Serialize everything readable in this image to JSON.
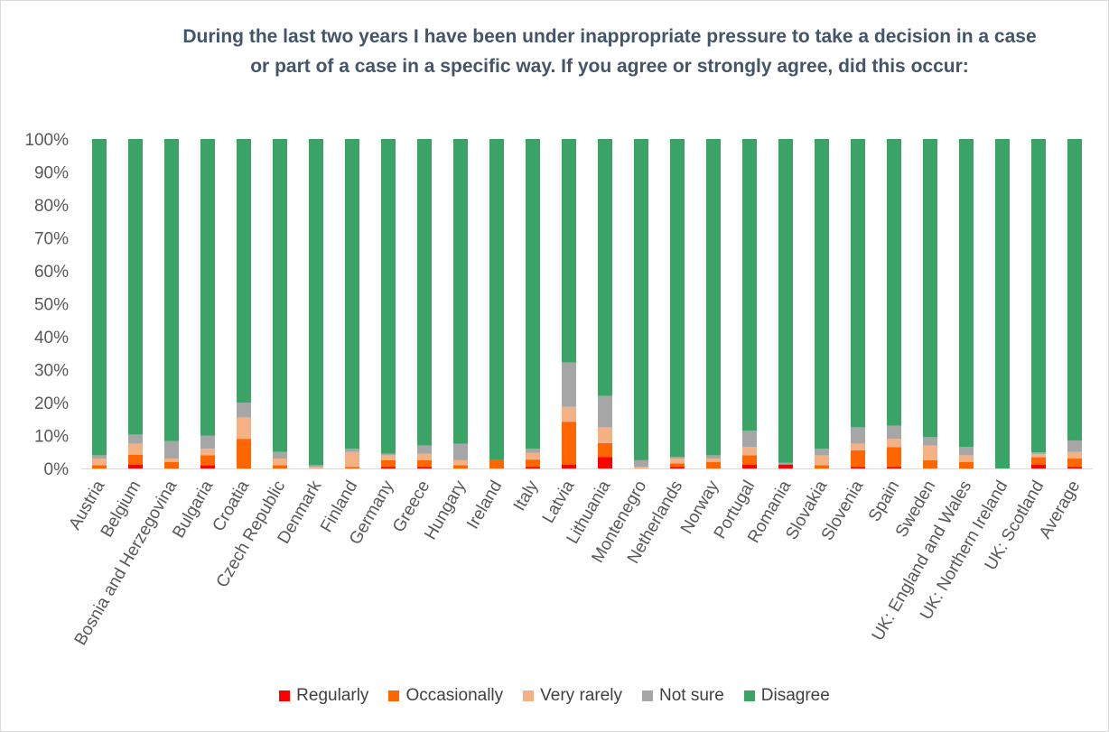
{
  "chart_data": {
    "type": "bar",
    "stacked": true,
    "title": "During the last two years I have been under inappropriate pressure to take a decision in a case or part of a case in a specific way. If you agree or strongly agree, did this occur:",
    "xlabel": "",
    "ylabel": "",
    "ylim": [
      0,
      100
    ],
    "yticks": [
      "0%",
      "10%",
      "20%",
      "30%",
      "40%",
      "50%",
      "60%",
      "70%",
      "80%",
      "90%",
      "100%"
    ],
    "grid": false,
    "legend_position": "bottom",
    "categories": [
      "Austria",
      "Belgium",
      "Bosnia and Herzegovina",
      "Bulgaria",
      "Croatia",
      "Czech Republic",
      "Denmark",
      "Finland",
      "Germany",
      "Greece",
      "Hungary",
      "Ireland",
      "Italy",
      "Latvia",
      "Lithuania",
      "Montenegro",
      "Netherlands",
      "Norway",
      "Portugal",
      "Romania",
      "Slovakia",
      "Slovenia",
      "Spain",
      "Sweden",
      "UK: England and Wales",
      "UK: Northern Ireland",
      "UK: Scotland",
      "Average"
    ],
    "series": [
      {
        "name": "Regularly",
        "color": "#ff0000",
        "values": [
          0,
          1.2,
          0,
          1,
          0,
          0,
          0,
          0,
          0.5,
          0.5,
          0,
          0,
          0.5,
          1.2,
          3.5,
          0,
          0.5,
          0,
          1.2,
          1.2,
          0,
          0.5,
          0.5,
          0,
          0,
          0,
          1.2,
          0.5
        ]
      },
      {
        "name": "Occasionally",
        "color": "#ff6600",
        "values": [
          1,
          3,
          2,
          3,
          9,
          1,
          0,
          0.5,
          2,
          2,
          1,
          2.5,
          2.2,
          13,
          4.2,
          0,
          1,
          2,
          2.8,
          0,
          1,
          5,
          6,
          2.5,
          2,
          0,
          2.2,
          2.5
        ]
      },
      {
        "name": "Very rarely",
        "color": "#f4b183",
        "values": [
          2,
          3.3,
          1,
          2,
          6.5,
          2,
          0.5,
          4.5,
          1.5,
          2,
          1.5,
          0,
          2,
          4.5,
          4.8,
          0.5,
          1.5,
          1,
          2.5,
          0,
          3,
          2,
          2.5,
          4.5,
          2,
          0,
          1,
          2
        ]
      },
      {
        "name": "Not sure",
        "color": "#a6a6a6",
        "values": [
          1,
          2.8,
          5.3,
          4,
          4.5,
          2,
          0.5,
          1,
          0.5,
          2.5,
          5,
          0,
          1.3,
          13.5,
          9.5,
          2,
          0.5,
          1,
          5,
          0.5,
          2,
          5,
          4,
          2.5,
          2.5,
          0,
          0.5,
          3.5
        ]
      },
      {
        "name": "Disagree",
        "color": "#3ca366",
        "values": [
          96,
          89.7,
          91.7,
          90,
          80,
          95,
          99,
          94,
          95.5,
          93,
          92.5,
          97.5,
          94,
          67.8,
          78,
          97.5,
          96.5,
          96,
          88.5,
          98.3,
          94,
          87.5,
          87,
          90.5,
          93.5,
          100,
          95.1,
          91.5
        ]
      }
    ]
  }
}
